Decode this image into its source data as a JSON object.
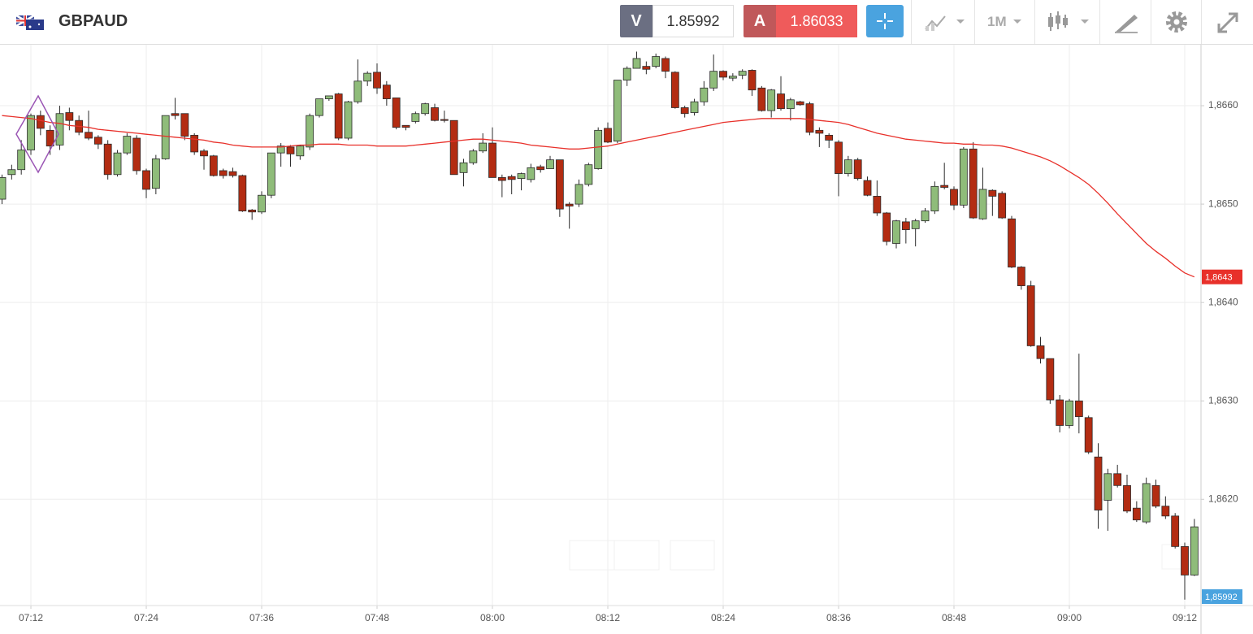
{
  "toolbar": {
    "symbol": "GBPAUD",
    "bid_label": "V",
    "bid": "1.85992",
    "ask_label": "A",
    "ask": "1.86033",
    "timeframe": "1M"
  },
  "chart_data": {
    "type": "candlestick",
    "categories": [
      null,
      null,
      null,
      "07:12",
      null,
      null,
      null,
      null,
      null,
      null,
      null,
      null,
      null,
      null,
      null,
      "07:24",
      null,
      null,
      null,
      null,
      null,
      null,
      null,
      null,
      null,
      null,
      null,
      "07:36",
      null,
      null,
      null,
      null,
      null,
      null,
      null,
      null,
      null,
      null,
      null,
      "07:48",
      null,
      null,
      null,
      null,
      null,
      null,
      null,
      null,
      null,
      null,
      null,
      "08:00",
      null,
      null,
      null,
      null,
      null,
      null,
      null,
      null,
      null,
      null,
      null,
      "08:12",
      null,
      null,
      null,
      null,
      null,
      null,
      null,
      null,
      null,
      null,
      null,
      "08:24",
      null,
      null,
      null,
      null,
      null,
      null,
      null,
      null,
      null,
      null,
      null,
      "08:36",
      null,
      null,
      null,
      null,
      null,
      null,
      null,
      null,
      null,
      null,
      null,
      "08:48",
      null,
      null,
      null,
      null,
      null,
      null,
      null,
      null,
      null,
      null,
      null,
      "09:00",
      null,
      null,
      null,
      null,
      null,
      null,
      null,
      null,
      null,
      null,
      null,
      "09:12",
      null
    ],
    "open": [
      1.86505,
      1.8653,
      1.86535,
      1.86555,
      1.8659,
      1.86575,
      1.8656,
      1.86593,
      1.86585,
      1.86573,
      1.86568,
      1.86561,
      1.8653,
      1.86552,
      1.86567,
      1.86534,
      1.86516,
      1.86546,
      1.86592,
      1.86592,
      1.8657,
      1.86554,
      1.86549,
      1.86534,
      1.86533,
      1.86529,
      1.86494,
      1.86492,
      1.86509,
      1.86552,
      1.86558,
      1.86549,
      1.86558,
      1.8659,
      1.86607,
      1.86612,
      1.86567,
      1.86604,
      1.86625,
      1.86634,
      1.86621,
      1.86608,
      1.8658,
      1.86584,
      1.86592,
      1.86598,
      1.86586,
      1.86585,
      1.86532,
      1.86542,
      1.86554,
      1.86562,
      1.86527,
      1.86528,
      1.86526,
      1.86525,
      1.86538,
      1.86536,
      1.86545,
      1.865,
      1.865,
      1.8652,
      1.86536,
      1.86577,
      1.86564,
      1.86626,
      1.86638,
      1.8664,
      1.8664,
      1.86648,
      1.86634,
      1.86598,
      1.86593,
      1.86604,
      1.86618,
      1.86635,
      1.86628,
      1.86631,
      1.86636,
      1.86618,
      1.86595,
      1.86612,
      1.86597,
      1.86604,
      1.86602,
      1.86575,
      1.8657,
      1.86563,
      1.86531,
      1.86545,
      1.86524,
      1.86508,
      1.86491,
      1.8646,
      1.86482,
      1.86475,
      1.86483,
      1.86493,
      1.86519,
      1.86515,
      1.86499,
      1.86556,
      1.86485,
      1.86514,
      1.86511,
      1.86485,
      1.86436,
      1.86417,
      1.86356,
      1.86343,
      1.86301,
      1.86275,
      1.863,
      1.86283,
      1.86243,
      1.86199,
      1.86226,
      1.86214,
      1.86191,
      1.86177,
      1.86214,
      1.86193,
      1.86183,
      1.86152,
      1.86123
    ],
    "high": [
      1.8653,
      1.8654,
      1.86565,
      1.86592,
      1.86595,
      1.8658,
      1.866,
      1.86598,
      1.8659,
      1.86595,
      1.8657,
      1.86565,
      1.86555,
      1.86572,
      1.8657,
      1.86536,
      1.8655,
      1.8659,
      1.86608,
      1.86592,
      1.86572,
      1.86556,
      1.8655,
      1.86536,
      1.86537,
      1.8653,
      1.86495,
      1.86513,
      1.86552,
      1.86562,
      1.8656,
      1.8656,
      1.86592,
      1.86607,
      1.8661,
      1.86613,
      1.86605,
      1.86647,
      1.86635,
      1.86643,
      1.86625,
      1.86608,
      1.8658,
      1.86594,
      1.86603,
      1.86602,
      1.86595,
      1.86585,
      1.86546,
      1.86556,
      1.86572,
      1.86578,
      1.8653,
      1.8653,
      1.86532,
      1.86541,
      1.8654,
      1.86549,
      1.86545,
      1.86502,
      1.86525,
      1.86542,
      1.86578,
      1.86583,
      1.86626,
      1.8664,
      1.86655,
      1.86645,
      1.86653,
      1.8665,
      1.86635,
      1.866,
      1.86607,
      1.86625,
      1.86652,
      1.86636,
      1.86633,
      1.86637,
      1.86637,
      1.8662,
      1.86617,
      1.8663,
      1.86608,
      1.86605,
      1.86604,
      1.86578,
      1.86572,
      1.86565,
      1.86549,
      1.86547,
      1.86528,
      1.86524,
      1.86492,
      1.86484,
      1.86486,
      1.86485,
      1.86496,
      1.86523,
      1.86542,
      1.86518,
      1.86558,
      1.86563,
      1.86537,
      1.86515,
      1.86513,
      1.86488,
      1.86437,
      1.86422,
      1.86365,
      1.86343,
      1.86306,
      1.86302,
      1.86348,
      1.86285,
      1.86257,
      1.86231,
      1.86235,
      1.86225,
      1.86198,
      1.86222,
      1.8622,
      1.86203,
      1.86186,
      1.86156,
      1.8618
    ],
    "low": [
      1.865,
      1.86525,
      1.8653,
      1.8655,
      1.8657,
      1.8655,
      1.86555,
      1.86575,
      1.8657,
      1.86565,
      1.86556,
      1.86525,
      1.86528,
      1.8655,
      1.8653,
      1.86506,
      1.8651,
      1.86545,
      1.86586,
      1.86565,
      1.8655,
      1.86535,
      1.86528,
      1.86526,
      1.86527,
      1.86492,
      1.86484,
      1.8649,
      1.86506,
      1.86538,
      1.86538,
      1.86545,
      1.86555,
      1.86588,
      1.86605,
      1.86565,
      1.86565,
      1.86602,
      1.8662,
      1.86612,
      1.866,
      1.86576,
      1.86575,
      1.86582,
      1.8659,
      1.86584,
      1.86583,
      1.8653,
      1.86518,
      1.8654,
      1.86552,
      1.86527,
      1.86507,
      1.8651,
      1.86514,
      1.86522,
      1.86532,
      1.86536,
      1.86487,
      1.86475,
      1.86497,
      1.86518,
      1.86535,
      1.86562,
      1.86562,
      1.8662,
      1.86638,
      1.86632,
      1.86638,
      1.86628,
      1.86597,
      1.86588,
      1.8659,
      1.866,
      1.86615,
      1.86626,
      1.86625,
      1.86627,
      1.8661,
      1.86594,
      1.86588,
      1.86595,
      1.86585,
      1.866,
      1.8657,
      1.86558,
      1.86557,
      1.86508,
      1.86528,
      1.86524,
      1.86508,
      1.86488,
      1.86458,
      1.86455,
      1.8646,
      1.86457,
      1.86481,
      1.8649,
      1.86515,
      1.86494,
      1.86496,
      1.86485,
      1.86484,
      1.86488,
      1.86485,
      1.86435,
      1.86413,
      1.86355,
      1.86338,
      1.86297,
      1.86268,
      1.86272,
      1.86267,
      1.86246,
      1.8617,
      1.86168,
      1.86212,
      1.86186,
      1.86177,
      1.86175,
      1.86191,
      1.8618,
      1.8615,
      1.86098,
      1.86122
    ],
    "close": [
      1.86527,
      1.86535,
      1.86555,
      1.8659,
      1.86577,
      1.86559,
      1.86592,
      1.86585,
      1.86573,
      1.86567,
      1.86561,
      1.8653,
      1.86552,
      1.86569,
      1.86534,
      1.86515,
      1.86546,
      1.8659,
      1.8659,
      1.86569,
      1.86553,
      1.86549,
      1.86529,
      1.86529,
      1.86529,
      1.86493,
      1.86492,
      1.86509,
      1.86552,
      1.86559,
      1.86551,
      1.86559,
      1.8659,
      1.86607,
      1.8661,
      1.86567,
      1.86604,
      1.86625,
      1.86633,
      1.86618,
      1.86607,
      1.86578,
      1.86578,
      1.86592,
      1.86602,
      1.86585,
      1.86585,
      1.8653,
      1.86542,
      1.86554,
      1.86562,
      1.86527,
      1.86524,
      1.86525,
      1.86531,
      1.86537,
      1.86535,
      1.86545,
      1.86495,
      1.86498,
      1.8652,
      1.8654,
      1.86575,
      1.86563,
      1.86626,
      1.86638,
      1.86648,
      1.86637,
      1.8665,
      1.86635,
      1.86598,
      1.86592,
      1.86604,
      1.86618,
      1.86635,
      1.86629,
      1.8663,
      1.86635,
      1.86616,
      1.86595,
      1.86616,
      1.86597,
      1.86606,
      1.86601,
      1.86573,
      1.86572,
      1.86565,
      1.86531,
      1.86545,
      1.86526,
      1.86509,
      1.86491,
      1.86462,
      1.86483,
      1.86474,
      1.86483,
      1.86493,
      1.86518,
      1.86517,
      1.86499,
      1.86556,
      1.86486,
      1.86515,
      1.86508,
      1.86486,
      1.86436,
      1.86417,
      1.86356,
      1.86343,
      1.86301,
      1.86275,
      1.863,
      1.86284,
      1.86248,
      1.86189,
      1.86226,
      1.86214,
      1.86188,
      1.86179,
      1.86216,
      1.86193,
      1.86183,
      1.86152,
      1.86123,
      1.86172
    ],
    "up_color": "#8fbc7a",
    "down_color": "#b32c12",
    "outline_color": "#2b2b2b",
    "series": [
      {
        "color": "#e8302a",
        "values": [
          1.8659,
          1.86589,
          1.86588,
          1.86587,
          1.86585,
          1.86583,
          1.86582,
          1.8658,
          1.86579,
          1.86578,
          1.86576,
          1.86575,
          1.86574,
          1.86573,
          1.86572,
          1.86571,
          1.8657,
          1.86569,
          1.86568,
          1.86567,
          1.86566,
          1.86565,
          1.86563,
          1.86562,
          1.8656,
          1.86559,
          1.86558,
          1.86558,
          1.86558,
          1.86558,
          1.86559,
          1.8656,
          1.8656,
          1.86561,
          1.86561,
          1.86561,
          1.8656,
          1.8656,
          1.8656,
          1.86559,
          1.86559,
          1.86559,
          1.86559,
          1.8656,
          1.86561,
          1.86562,
          1.86563,
          1.86564,
          1.86565,
          1.86566,
          1.86566,
          1.86565,
          1.86564,
          1.86563,
          1.86562,
          1.8656,
          1.86559,
          1.86558,
          1.86557,
          1.86556,
          1.86556,
          1.86557,
          1.86558,
          1.86559,
          1.86561,
          1.86563,
          1.86565,
          1.86567,
          1.86569,
          1.86571,
          1.86573,
          1.86575,
          1.86577,
          1.86579,
          1.86581,
          1.86583,
          1.86584,
          1.86585,
          1.86586,
          1.86587,
          1.86587,
          1.86587,
          1.86587,
          1.86587,
          1.86586,
          1.86585,
          1.86584,
          1.86583,
          1.86581,
          1.86578,
          1.86575,
          1.86572,
          1.8657,
          1.86568,
          1.86566,
          1.86565,
          1.86564,
          1.86563,
          1.86562,
          1.86562,
          1.86561,
          1.86561,
          1.8656,
          1.8656,
          1.86559,
          1.86557,
          1.86554,
          1.86551,
          1.86548,
          1.86544,
          1.86539,
          1.86533,
          1.86527,
          1.8652,
          1.86511,
          1.86501,
          1.8649,
          1.8648,
          1.8647,
          1.8646,
          1.86452,
          1.86445,
          1.86437,
          1.8643,
          1.86426
        ]
      }
    ],
    "ma_tag": {
      "value": 1.86426,
      "label": "1,8643"
    },
    "last_price": {
      "value": 1.85992,
      "label": "1,85992"
    },
    "last_price_color": "#4aa3df",
    "ylim": [
      1.86092,
      1.86662
    ],
    "yticks": [
      {
        "value": 1.866,
        "label": "1,8660"
      },
      {
        "value": 1.865,
        "label": "1,8650"
      },
      {
        "value": 1.864,
        "label": "1,8640"
      },
      {
        "value": 1.863,
        "label": "1,8630"
      },
      {
        "value": 1.862,
        "label": "1,8620"
      }
    ],
    "grid": true
  }
}
